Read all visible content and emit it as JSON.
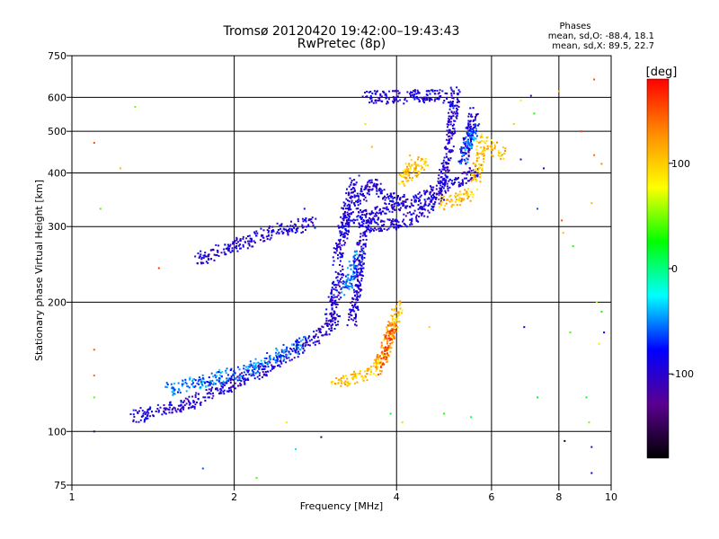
{
  "title": "Tromsø 20120420 19:42:00–19:43:43",
  "subtitle": "RwPretec (8p)",
  "phases": {
    "heading": "Phases",
    "line_o": "mean, sd,O: -88.4, 18.1",
    "line_x": "mean, sd,X:  89.5, 22.7"
  },
  "chart_data": {
    "type": "scatter",
    "xlabel": "Frequency [MHz]",
    "ylabel": "Stationary phase Virtual Height [km]",
    "xscale": "log",
    "yscale": "log",
    "xlim": [
      1,
      10
    ],
    "ylim": [
      75,
      750
    ],
    "x_ticks": [
      1,
      2,
      4,
      6,
      8,
      10
    ],
    "x_tick_labels": [
      "1",
      "2",
      "4",
      "6",
      "8",
      "10"
    ],
    "y_ticks": [
      75,
      100,
      200,
      300,
      400,
      500,
      600,
      750
    ],
    "y_tick_labels": [
      "75",
      "100",
      "200",
      "300",
      "400",
      "500",
      "600",
      "750"
    ],
    "grid": true,
    "colorbar": {
      "label": "[deg]",
      "range": [
        -180,
        180
      ],
      "ticks": [
        -100,
        0,
        100
      ],
      "tick_labels": [
        "-100",
        "0",
        "100"
      ],
      "colors": [
        "#000000",
        "#5a0090",
        "#0000ff",
        "#00ffff",
        "#00ff00",
        "#ffff00",
        "#ff8c00",
        "#ff0000"
      ]
    },
    "series": [
      {
        "phase_deg": -95,
        "segments": [
          [
            1.3,
            108,
            1.45,
            112
          ],
          [
            1.45,
            112,
            1.6,
            115
          ],
          [
            1.6,
            115,
            1.8,
            122
          ],
          [
            1.8,
            122,
            2.0,
            130
          ],
          [
            2.0,
            130,
            2.3,
            140
          ],
          [
            2.3,
            140,
            2.6,
            155
          ],
          [
            2.6,
            155,
            2.9,
            168
          ],
          [
            2.9,
            168,
            3.1,
            185
          ],
          [
            3.0,
            180,
            3.15,
            240
          ],
          [
            3.1,
            250,
            3.25,
            330
          ],
          [
            3.2,
            320,
            3.35,
            385
          ],
          [
            3.3,
            180,
            3.45,
            240
          ],
          [
            3.4,
            240,
            3.5,
            320
          ],
          [
            3.5,
            300,
            3.7,
            300
          ],
          [
            3.7,
            300,
            4.0,
            305
          ],
          [
            4.0,
            305,
            4.4,
            320
          ],
          [
            4.4,
            320,
            4.8,
            350
          ],
          [
            4.8,
            350,
            5.0,
            450
          ],
          [
            5.0,
            450,
            5.15,
            620
          ],
          [
            3.2,
            310,
            3.6,
            320
          ],
          [
            3.6,
            320,
            4.0,
            335
          ],
          [
            4.0,
            335,
            4.6,
            355
          ],
          [
            4.6,
            355,
            5.1,
            380
          ],
          [
            5.1,
            380,
            5.5,
            395
          ],
          [
            5.5,
            395,
            5.7,
            405
          ],
          [
            5.3,
            420,
            5.6,
            560
          ],
          [
            3.5,
            600,
            4.0,
            600
          ],
          [
            4.0,
            600,
            4.6,
            605
          ],
          [
            4.6,
            605,
            5.1,
            600
          ],
          [
            1.7,
            250,
            2.0,
            270
          ],
          [
            2.0,
            270,
            2.4,
            295
          ],
          [
            2.4,
            295,
            2.8,
            305
          ],
          [
            3.3,
            330,
            3.6,
            380
          ],
          [
            3.6,
            380,
            3.8,
            350
          ],
          [
            3.8,
            350,
            4.2,
            340
          ]
        ]
      },
      {
        "phase_deg": -55,
        "segments": [
          [
            1.5,
            125,
            1.8,
            132
          ],
          [
            1.8,
            132,
            2.1,
            138
          ],
          [
            2.1,
            138,
            2.4,
            150
          ],
          [
            2.4,
            150,
            2.7,
            162
          ],
          [
            3.2,
            210,
            3.4,
            260
          ],
          [
            5.3,
            430,
            5.6,
            510
          ]
        ]
      },
      {
        "phase_deg": 105,
        "segments": [
          [
            3.05,
            130,
            3.3,
            132
          ],
          [
            3.3,
            132,
            3.6,
            138
          ],
          [
            3.6,
            138,
            3.8,
            150
          ],
          [
            3.8,
            150,
            3.95,
            180
          ],
          [
            3.95,
            180,
            4.05,
            200
          ],
          [
            4.8,
            340,
            5.2,
            350
          ],
          [
            5.2,
            350,
            5.6,
            360
          ],
          [
            5.6,
            380,
            5.75,
            460
          ],
          [
            5.7,
            480,
            6.3,
            440
          ],
          [
            4.1,
            380,
            4.3,
            430
          ],
          [
            4.2,
            390,
            4.5,
            430
          ]
        ]
      },
      {
        "phase_deg": 150,
        "segments": [
          [
            3.7,
            140,
            3.95,
            175
          ]
        ]
      }
    ],
    "points": [
      [
        1.1,
        470,
        150
      ],
      [
        1.23,
        410,
        110
      ],
      [
        1.45,
        240,
        160
      ],
      [
        1.1,
        155,
        150
      ],
      [
        1.1,
        135,
        140
      ],
      [
        1.1,
        120,
        40
      ],
      [
        1.1,
        100,
        -150
      ],
      [
        1.13,
        330,
        40
      ],
      [
        1.31,
        570,
        50
      ],
      [
        1.75,
        82,
        -60
      ],
      [
        2.2,
        78,
        40
      ],
      [
        2.5,
        105,
        90
      ],
      [
        2.6,
        91,
        -30
      ],
      [
        2.9,
        97,
        -150
      ],
      [
        2.7,
        330,
        -90
      ],
      [
        3.5,
        520,
        90
      ],
      [
        3.6,
        460,
        110
      ],
      [
        3.9,
        110,
        20
      ],
      [
        4.1,
        105,
        60
      ],
      [
        4.6,
        175,
        100
      ],
      [
        4.9,
        110,
        30
      ],
      [
        5.5,
        108,
        10
      ],
      [
        6.6,
        520,
        100
      ],
      [
        6.8,
        590,
        70
      ],
      [
        6.8,
        430,
        -100
      ],
      [
        6.9,
        175,
        -80
      ],
      [
        7.1,
        605,
        -110
      ],
      [
        7.2,
        550,
        30
      ],
      [
        7.3,
        330,
        -60
      ],
      [
        7.3,
        120,
        20
      ],
      [
        7.5,
        410,
        -90
      ],
      [
        8.0,
        620,
        110
      ],
      [
        8.1,
        310,
        150
      ],
      [
        8.15,
        290,
        110
      ],
      [
        8.2,
        95,
        -170
      ],
      [
        8.4,
        170,
        40
      ],
      [
        8.5,
        270,
        30
      ],
      [
        8.8,
        500,
        160
      ],
      [
        9.0,
        120,
        20
      ],
      [
        9.1,
        105,
        50
      ],
      [
        9.2,
        340,
        110
      ],
      [
        9.3,
        660,
        150
      ],
      [
        9.3,
        440,
        140
      ],
      [
        9.4,
        200,
        60
      ],
      [
        9.5,
        160,
        90
      ],
      [
        9.6,
        420,
        130
      ],
      [
        9.7,
        170,
        -80
      ],
      [
        9.2,
        80,
        -100
      ],
      [
        9.2,
        92,
        -110
      ],
      [
        9.6,
        190,
        20
      ]
    ]
  }
}
